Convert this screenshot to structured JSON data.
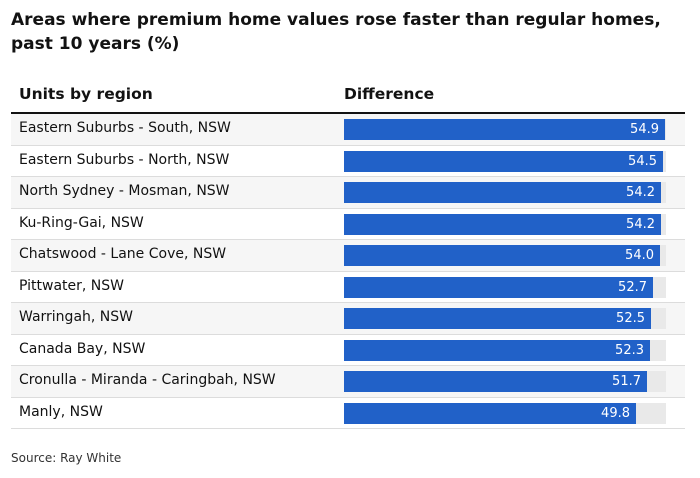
{
  "chart_data": {
    "type": "bar",
    "title": "Areas where premium home values rose faster than regular homes, past 10 years (%)",
    "column_headers": [
      "Units by region",
      "Difference"
    ],
    "categories": [
      "Eastern Suburbs - South, NSW",
      "Eastern Suburbs - North, NSW",
      "North Sydney - Mosman, NSW",
      "Ku-Ring-Gai, NSW",
      "Chatswood - Lane Cove, NSW",
      "Pittwater, NSW",
      "Warringah, NSW",
      "Canada Bay, NSW",
      "Cronulla - Miranda - Caringbah, NSW",
      "Manly, NSW"
    ],
    "values": [
      54.9,
      54.5,
      54.2,
      54.2,
      54.0,
      52.7,
      52.5,
      52.3,
      51.7,
      49.8
    ],
    "value_labels": [
      "54.9",
      "54.5",
      "54.2",
      "54.2",
      "54.0",
      "52.7",
      "52.5",
      "52.3",
      "51.7",
      "49.8"
    ],
    "xlim": [
      0,
      55
    ],
    "bar_color": "#2161c8",
    "track_color": "#e9e9e9",
    "source": "Source: Ray White"
  }
}
